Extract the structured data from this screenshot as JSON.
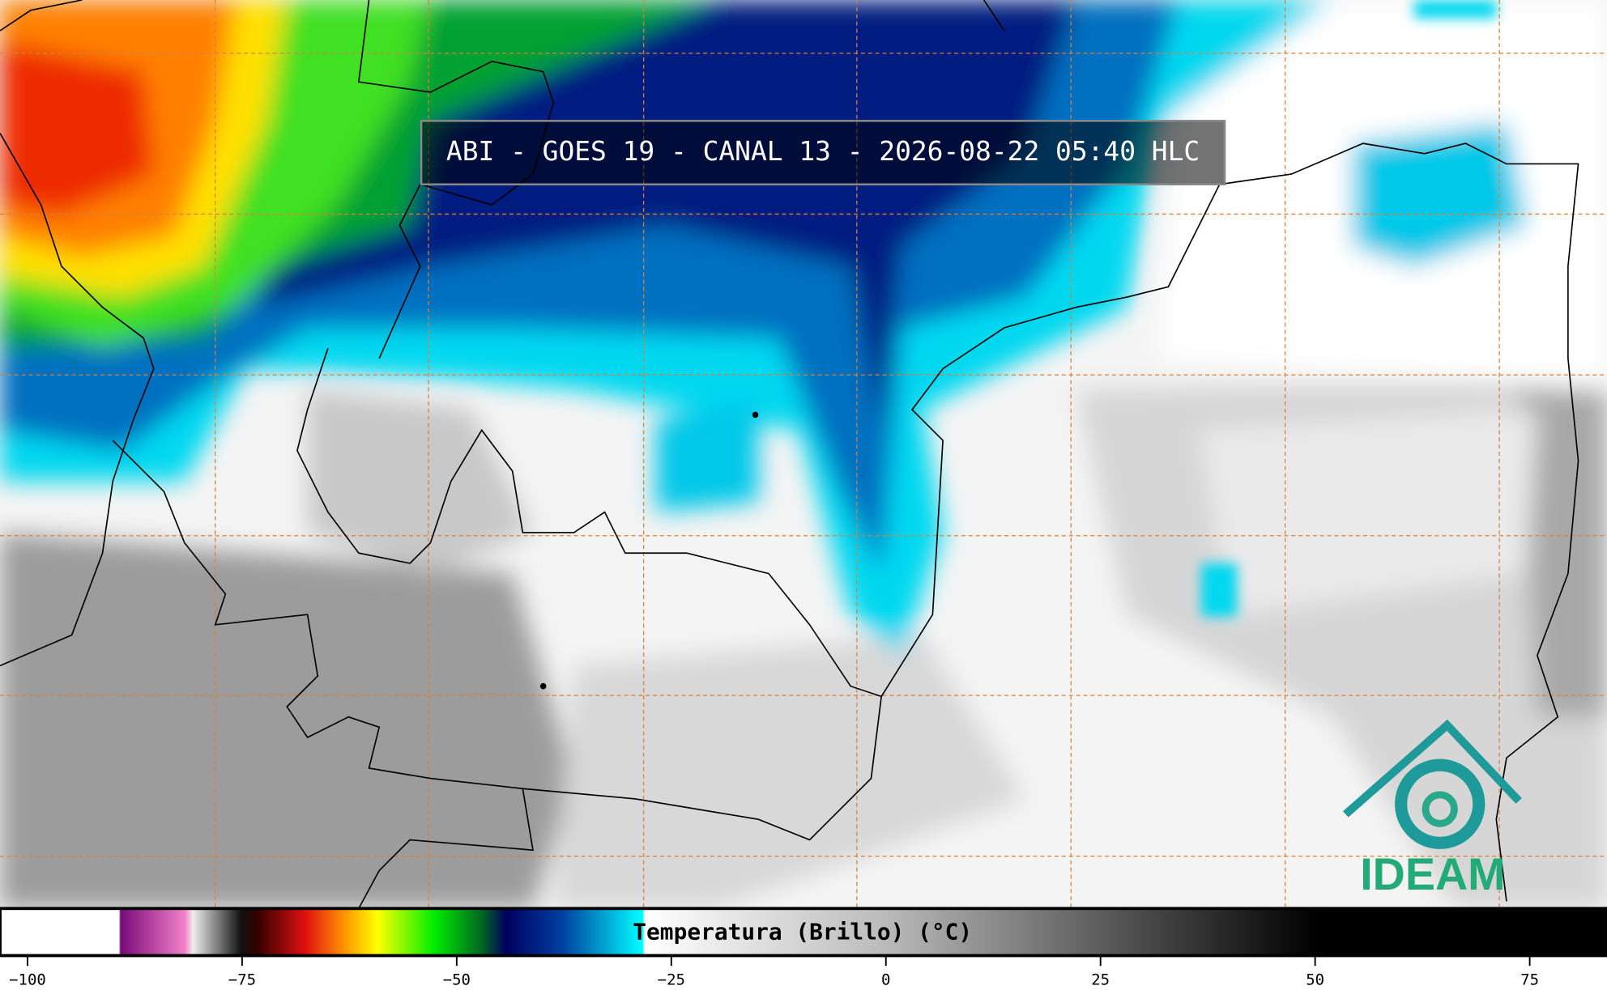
{
  "title": "ABI - GOES 19 - CANAL 13 - 2026-08-22 05:40 HLC",
  "colorbar": {
    "label": "Temperatura (Brillo) (°C)",
    "xlim": [
      -103.2,
      84
    ],
    "xticks": [
      {
        "value": -100,
        "label": "−100"
      },
      {
        "value": -75,
        "label": "−75"
      },
      {
        "value": -50,
        "label": "−50"
      },
      {
        "value": -25,
        "label": "−25"
      },
      0,
      25,
      50,
      75
    ]
  },
  "logo": "IDEAM"
}
